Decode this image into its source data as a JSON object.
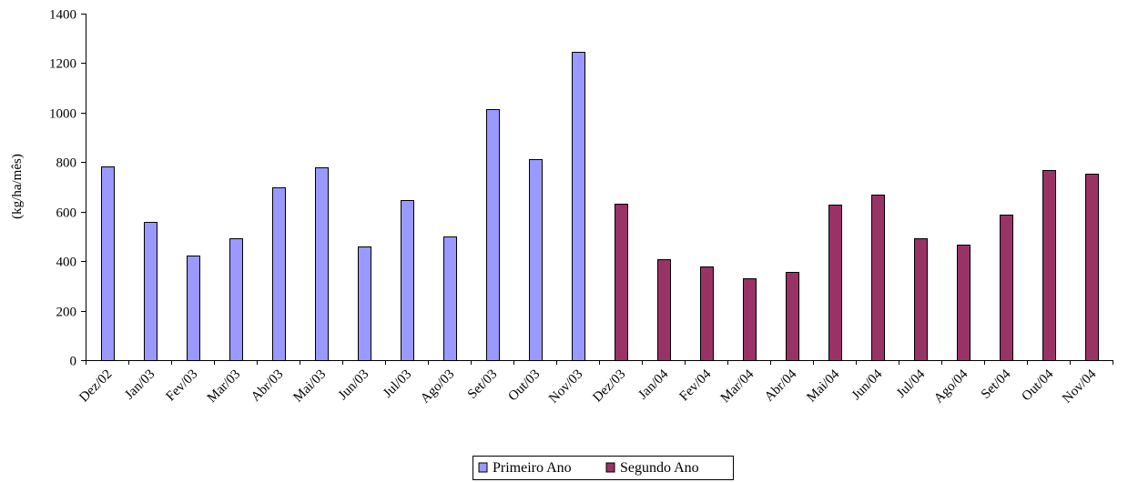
{
  "chart_data": {
    "type": "bar",
    "title": "",
    "xlabel": "",
    "ylabel": "(kg/ha/mês)",
    "ylim": [
      0,
      1400
    ],
    "yticks": [
      "0",
      "200",
      "400",
      "600",
      "800",
      "1000",
      "1200",
      "1400"
    ],
    "grid": false,
    "legend_position": "bottom",
    "categories": [
      "Dez/02",
      "Jan/03",
      "Fev/03",
      "Mar/03",
      "Abr/03",
      "Mai/03",
      "Jun/03",
      "Jul/03",
      "Ago/03",
      "Set/03",
      "Out/03",
      "Nov/03",
      "Dez/03",
      "Jan/04",
      "Fev/04",
      "Mar/04",
      "Abr/04",
      "Mai/04",
      "Jun/04",
      "Jul/04",
      "Ago/04",
      "Set/04",
      "Out/04",
      "Nov/04"
    ],
    "series": [
      {
        "name": "Primeiro Ano",
        "color": "#9999ff",
        "values": [
          783,
          558,
          423,
          492,
          698,
          778,
          458,
          645,
          498,
          1015,
          812,
          1247,
          null,
          null,
          null,
          null,
          null,
          null,
          null,
          null,
          null,
          null,
          null,
          null
        ]
      },
      {
        "name": "Segundo Ano",
        "color": "#993366",
        "values": [
          null,
          null,
          null,
          null,
          null,
          null,
          null,
          null,
          null,
          null,
          null,
          null,
          633,
          407,
          378,
          332,
          355,
          627,
          667,
          493,
          465,
          587,
          767,
          755
        ]
      }
    ]
  }
}
